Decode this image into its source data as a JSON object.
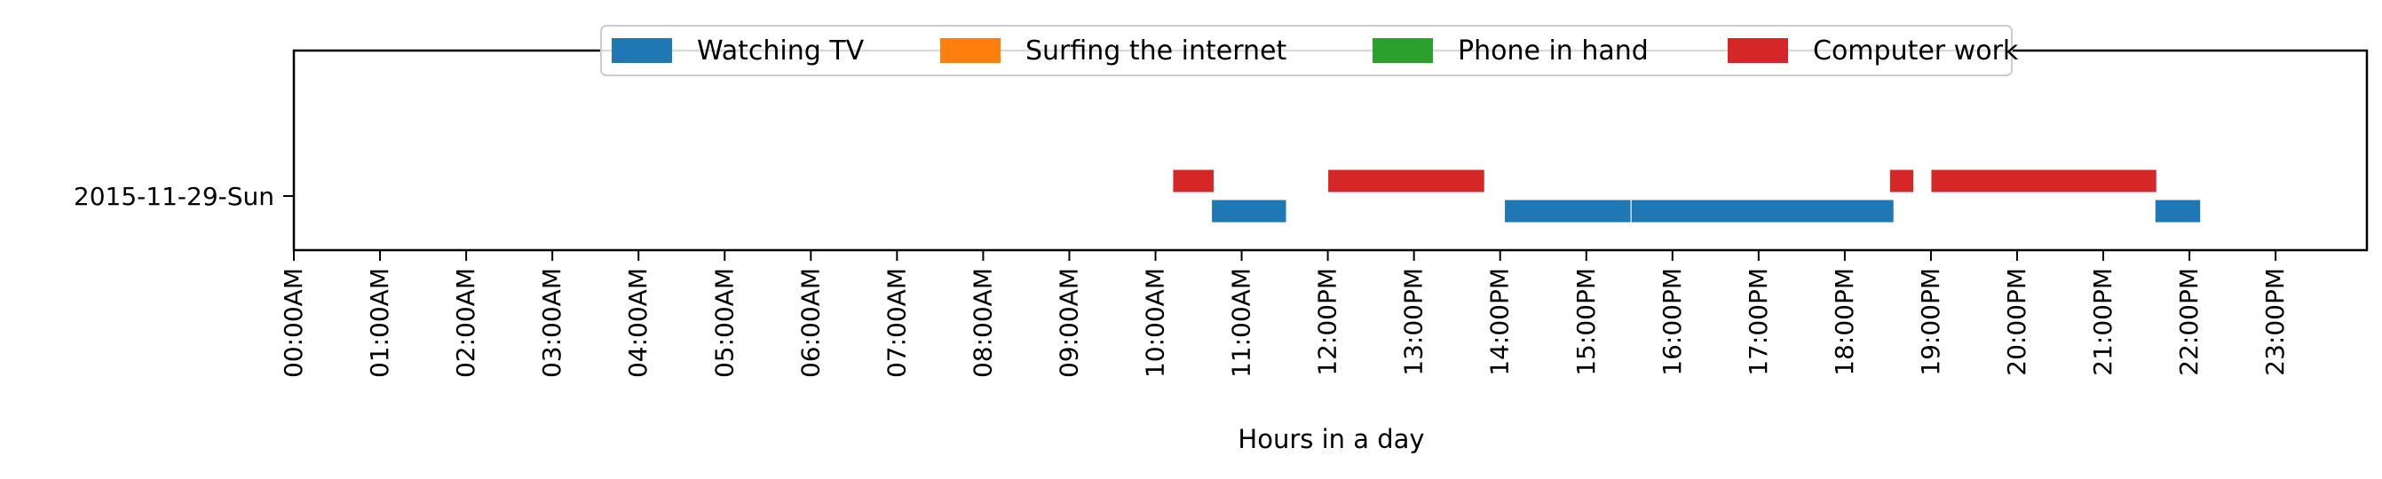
{
  "chart_data": {
    "type": "timeline",
    "xlabel": "Hours in a day",
    "ylabel": "",
    "xlim": [
      0,
      24
    ],
    "x_ticks": [
      "00:00AM",
      "01:00AM",
      "02:00AM",
      "03:00AM",
      "04:00AM",
      "05:00AM",
      "06:00AM",
      "07:00AM",
      "08:00AM",
      "09:00AM",
      "10:00AM",
      "11:00AM",
      "12:00PM",
      "13:00PM",
      "14:00PM",
      "15:00PM",
      "16:00PM",
      "17:00PM",
      "18:00PM",
      "19:00PM",
      "20:00PM",
      "21:00PM",
      "22:00PM",
      "23:00PM"
    ],
    "categories": [
      "2015-11-29-Sun"
    ],
    "legend": {
      "placement": "top-center"
    },
    "grid": false,
    "series": [
      {
        "name": "Watching TV",
        "color": "#1f77b4",
        "segments": [
          {
            "day": "2015-11-29-Sun",
            "start": 10.65,
            "end": 11.52
          },
          {
            "day": "2015-11-29-Sun",
            "start": 14.05,
            "end": 15.52
          },
          {
            "day": "2015-11-29-Sun",
            "start": 15.52,
            "end": 18.57
          },
          {
            "day": "2015-11-29-Sun",
            "start": 21.6,
            "end": 22.13
          }
        ]
      },
      {
        "name": "Surfing the internet",
        "color": "#ff7f0e",
        "segments": []
      },
      {
        "name": "Phone in hand",
        "color": "#2ca02c",
        "segments": []
      },
      {
        "name": "Computer work",
        "color": "#d62728",
        "segments": [
          {
            "day": "2015-11-29-Sun",
            "start": 10.2,
            "end": 10.68
          },
          {
            "day": "2015-11-29-Sun",
            "start": 12.0,
            "end": 13.82
          },
          {
            "day": "2015-11-29-Sun",
            "start": 18.52,
            "end": 18.8
          },
          {
            "day": "2015-11-29-Sun",
            "start": 19.0,
            "end": 21.62
          }
        ]
      }
    ]
  }
}
